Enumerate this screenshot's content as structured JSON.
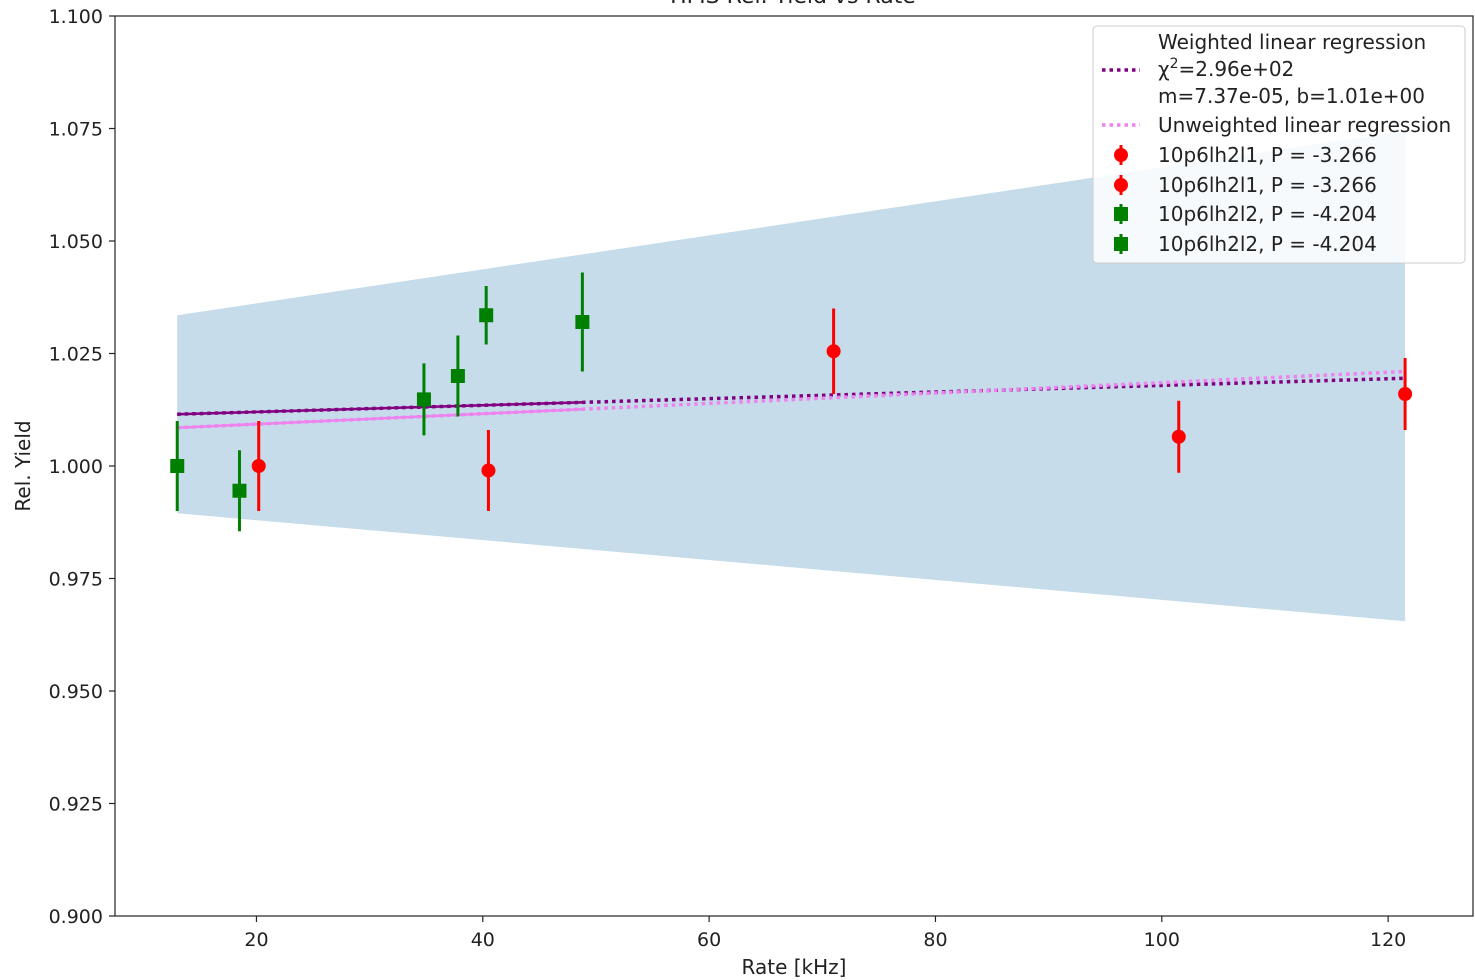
{
  "chart_data": {
    "type": "scatter",
    "title": "HMS Rel. Yield vs Rate",
    "xlabel": "Rate [kHz]",
    "ylabel": "Rel. Yield",
    "xlim": [
      7.5,
      127.5
    ],
    "ylim": [
      0.9,
      1.1
    ],
    "xticks": [
      20,
      40,
      60,
      80,
      100,
      120
    ],
    "yticks": [
      0.9,
      0.925,
      0.95,
      0.975,
      1.0,
      1.025,
      1.05,
      1.075,
      1.1
    ],
    "xtick_labels": [
      "20",
      "40",
      "60",
      "80",
      "100",
      "120"
    ],
    "ytick_labels": [
      "0.900",
      "0.925",
      "0.950",
      "0.975",
      "1.000",
      "1.025",
      "1.050",
      "1.075",
      "1.100"
    ],
    "grid": false,
    "legend_position": "top-right",
    "confidence_band": {
      "color": "#c6dcea",
      "x": [
        13,
        121.5
      ],
      "upper": [
        1.0335,
        1.0745
      ],
      "lower": [
        0.9895,
        0.9655
      ]
    },
    "fits": [
      {
        "name": "Weighted linear regression",
        "legend_lines": [
          "Weighted linear regression",
          "χ2=2.96e+02",
          "m=7.37e-05, b=1.01e+00"
        ],
        "color": "#800080",
        "style": "dotted",
        "x": [
          13,
          121.5
        ],
        "y": [
          1.0115,
          1.0195
        ],
        "solid_segment_x": [
          13,
          49
        ]
      },
      {
        "name": "Unweighted linear regression",
        "color": "#ee82ee",
        "style": "dotted",
        "x": [
          13,
          121.5
        ],
        "y": [
          1.0085,
          1.021
        ],
        "solid_segment_x": [
          13,
          49
        ]
      }
    ],
    "series": [
      {
        "name": "10p6lh2l1, P = -3.266",
        "color": "#ff0000",
        "marker": "circle",
        "points": [
          {
            "x": 20.2,
            "y": 1.0,
            "err": 0.01
          },
          {
            "x": 40.5,
            "y": 0.999,
            "err": 0.009
          },
          {
            "x": 71.0,
            "y": 1.0255,
            "err": 0.0095
          },
          {
            "x": 101.5,
            "y": 1.0065,
            "err": 0.008
          },
          {
            "x": 121.5,
            "y": 1.016,
            "err": 0.008
          }
        ]
      },
      {
        "name": "10p6lh2l2, P = -4.204",
        "color": "#008000",
        "marker": "square",
        "points": [
          {
            "x": 13.0,
            "y": 1.0,
            "err": 0.01
          },
          {
            "x": 18.5,
            "y": 0.9945,
            "err": 0.009
          },
          {
            "x": 34.8,
            "y": 1.0148,
            "err": 0.008
          },
          {
            "x": 37.8,
            "y": 1.02,
            "err": 0.009
          },
          {
            "x": 40.3,
            "y": 1.0335,
            "err": 0.0065
          },
          {
            "x": 48.8,
            "y": 1.032,
            "err": 0.011
          }
        ]
      }
    ],
    "legend_entries": [
      {
        "label": "10p6lh2l1, P = -3.266",
        "series": 0
      },
      {
        "label": "10p6lh2l1, P = -3.266",
        "series": 0
      },
      {
        "label": "10p6lh2l2, P = -4.204",
        "series": 1
      },
      {
        "label": "10p6lh2l2, P = -4.204",
        "series": 1
      }
    ]
  }
}
